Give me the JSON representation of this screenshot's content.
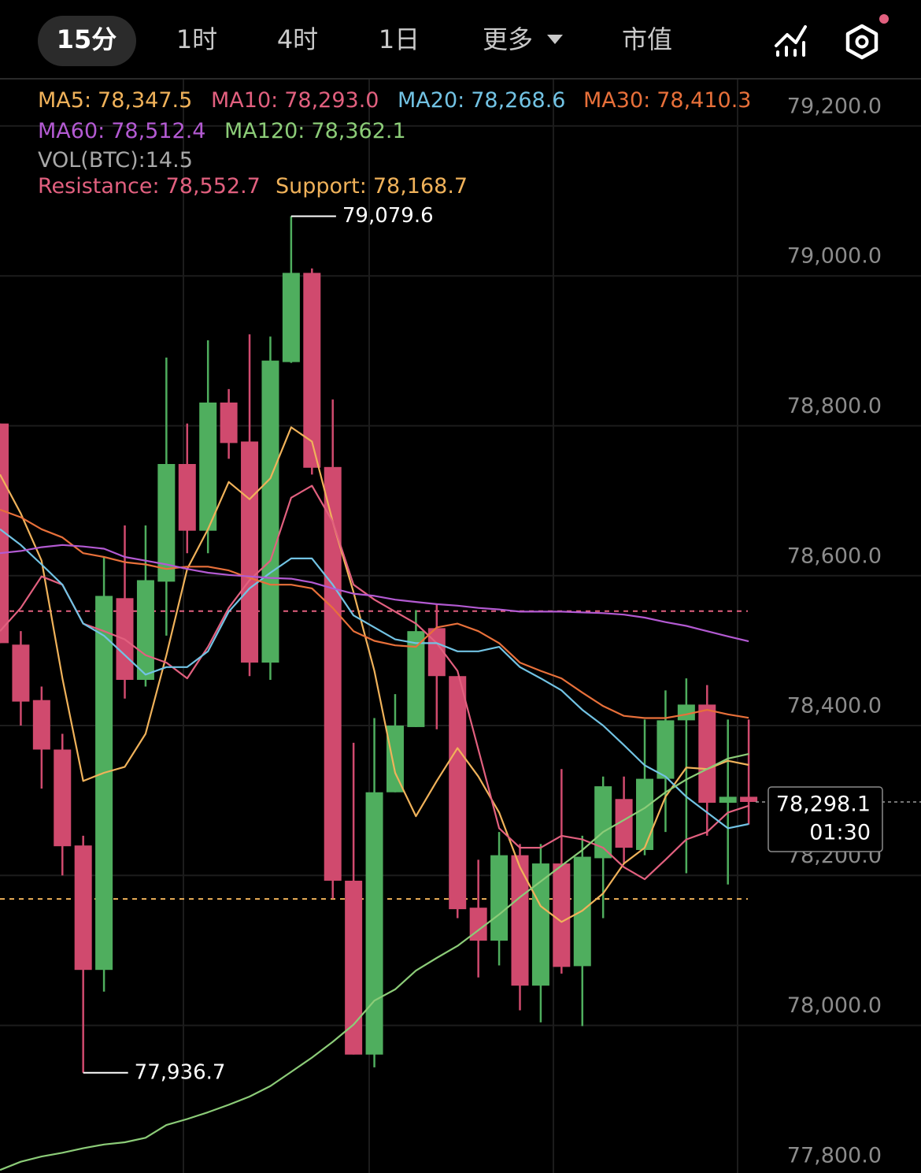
{
  "tabs": [
    {
      "label": "15分",
      "selected": true
    },
    {
      "label": "1时"
    },
    {
      "label": "4时"
    },
    {
      "label": "1日"
    },
    {
      "label": "更多",
      "dropdown": true
    },
    {
      "label": "市值"
    }
  ],
  "chart_data": {
    "type": "candlestick",
    "up_color": "#4fae5e",
    "down_color": "#d04a6e",
    "open": [
      78803,
      78508,
      78434,
      78368,
      78240,
      78074,
      78570,
      78461,
      78592,
      78749,
      78660,
      78831,
      78779,
      78484,
      78885,
      79004,
      78745,
      78193,
      77961,
      78311,
      78398,
      78530,
      78466,
      78157,
      78113,
      78227,
      78053,
      78216,
      78079,
      78223,
      78302,
      78234,
      78329,
      78407,
      78428,
      78297,
      78305
    ],
    "high": [
      78803,
      78526,
      78452,
      78389,
      78253,
      78625,
      78667,
      78667,
      78891,
      78803,
      78914,
      78849,
      78922,
      78919,
      79079.6,
      79010,
      78835,
      78377,
      78410,
      78442,
      78554,
      78562,
      78466,
      78221,
      78258,
      78242,
      78242,
      78342,
      78253,
      78332,
      78332,
      78408,
      78447,
      78463,
      78454,
      78408,
      78408
    ],
    "low": [
      78510,
      78400,
      78316,
      78200,
      77936.7,
      78045,
      78436,
      78452,
      78520,
      78630,
      78630,
      78756,
      78466,
      78461,
      78884,
      78735,
      78169,
      77961,
      77944,
      78311,
      78398,
      78395,
      78143,
      78064,
      78080,
      78020,
      78004,
      78069,
      77999,
      78143,
      78216,
      78227,
      78258,
      78203,
      78253,
      78188,
      78268
    ],
    "close": [
      78510,
      78432,
      78368,
      78239,
      78074,
      78573,
      78461,
      78594,
      78749,
      78660,
      78831,
      78777,
      78484,
      78887,
      79004,
      78744,
      78193,
      77961,
      78311,
      78400,
      78526,
      78466,
      78155,
      78113,
      78227,
      78053,
      78216,
      78078,
      78225,
      78319,
      78237,
      78329,
      78407,
      78428,
      78297,
      78305,
      78298.1
    ],
    "series": [
      {
        "name": "MA5:",
        "color": "#f0b25a",
        "value_label": "78,347.5",
        "values": [
          78735,
          78683,
          78620,
          78463,
          78326,
          78337,
          78345,
          78389,
          78494,
          78609,
          78662,
          78725,
          78702,
          78730,
          78798,
          78779,
          78672,
          78578,
          78473,
          78337,
          78279,
          78326,
          78370,
          78332,
          78284,
          78211,
          78159,
          78138,
          78153,
          78176,
          78216,
          78237,
          78305,
          78344,
          78342,
          78353,
          78347.5
        ]
      },
      {
        "name": "MA10:",
        "color": "#e2607f",
        "value_label": "78,293.0",
        "values": [
          78526,
          78557,
          78599,
          78588,
          78536,
          78526,
          78515,
          78494,
          78484,
          78463,
          78505,
          78557,
          78594,
          78620,
          78704,
          78720,
          78672,
          78588,
          78568,
          78552,
          78536,
          78510,
          78473,
          78368,
          78263,
          78237,
          78237,
          78253,
          78248,
          78237,
          78211,
          78195,
          78221,
          78248,
          78258,
          78284,
          78293
        ]
      },
      {
        "name": "MA20:",
        "color": "#72c3e4",
        "value_label": "78,268.6",
        "values": [
          78662,
          78641,
          78615,
          78588,
          78536,
          78520,
          78494,
          78468,
          78478,
          78478,
          78499,
          78552,
          78583,
          78604,
          78623,
          78623,
          78588,
          78547,
          78531,
          78515,
          78510,
          78510,
          78499,
          78499,
          78505,
          78478,
          78463,
          78447,
          78421,
          78400,
          78374,
          78347,
          78332,
          78305,
          78284,
          78263,
          78268.6
        ]
      },
      {
        "name": "MA30:",
        "color": "#e8703a",
        "value_label": "78,410.3",
        "values": [
          78688,
          78678,
          78662,
          78651,
          78630,
          78625,
          78618,
          78615,
          78609,
          78612,
          78612,
          78607,
          78597,
          78588,
          78588,
          78583,
          78557,
          78526,
          78513,
          78507,
          78505,
          78531,
          78536,
          78526,
          78510,
          78484,
          78473,
          78463,
          78444,
          78426,
          78413,
          78410,
          78410,
          78415,
          78421,
          78415,
          78410.3
        ]
      },
      {
        "name": "MA60:",
        "color": "#b35ad2",
        "value_label": "78,512.4",
        "values": [
          78630,
          78633,
          78638,
          78641,
          78639,
          78636,
          78625,
          78620,
          78615,
          78609,
          78604,
          78601,
          78599,
          78597,
          78596,
          78591,
          78583,
          78576,
          78573,
          78568,
          78565,
          78562,
          78560,
          78557,
          78555,
          78552,
          78552,
          78552,
          78551,
          78550,
          78548,
          78544,
          78538,
          78533,
          78526,
          78519,
          78512.4
        ]
      },
      {
        "name": "MA120:",
        "color": "#8ccc78",
        "value_label": "78,362.1",
        "values": [
          77807,
          77818,
          77825,
          77830,
          77836,
          77841,
          77844,
          77850,
          77867,
          77875,
          77884,
          77894,
          77905,
          77919,
          77938,
          77957,
          77978,
          78001,
          78033,
          78048,
          78073,
          78090,
          78106,
          78127,
          78148,
          78171,
          78192,
          78213,
          78234,
          78258,
          78274,
          78290,
          78311,
          78328,
          78342,
          78356,
          78362.1
        ]
      }
    ],
    "volume": {
      "name": "VOL(BTC):",
      "value": 14.5,
      "color": "#a8a8a8"
    },
    "levels": [
      {
        "name": "Resistance:",
        "value": 78552.7,
        "label": "78,552.7",
        "color": "#e2607f"
      },
      {
        "name": "Support:",
        "value": 78168.7,
        "label": "78,168.7",
        "color": "#f0b25a"
      }
    ],
    "annotations": [
      {
        "value": 79079.6,
        "label": "79,079.6"
      },
      {
        "value": 77936.7,
        "label": "77,936.7"
      }
    ],
    "last_price": {
      "value": 78298.1,
      "label": "78,298.1",
      "countdown": "01:30"
    },
    "ylim": [
      77803,
      79263
    ],
    "yticks": [
      {
        "value": 77800,
        "label": "77,800.0"
      },
      {
        "value": 78000,
        "label": "78,000.0"
      },
      {
        "value": 78200,
        "label": "78,200.0"
      },
      {
        "value": 78400,
        "label": "78,400.0"
      },
      {
        "value": 78600,
        "label": "78,600.0"
      },
      {
        "value": 78800,
        "label": "78,800.0"
      },
      {
        "value": 79000,
        "label": "79,000.0"
      },
      {
        "value": 79200,
        "label": "79,200.0"
      }
    ],
    "grid": true
  }
}
